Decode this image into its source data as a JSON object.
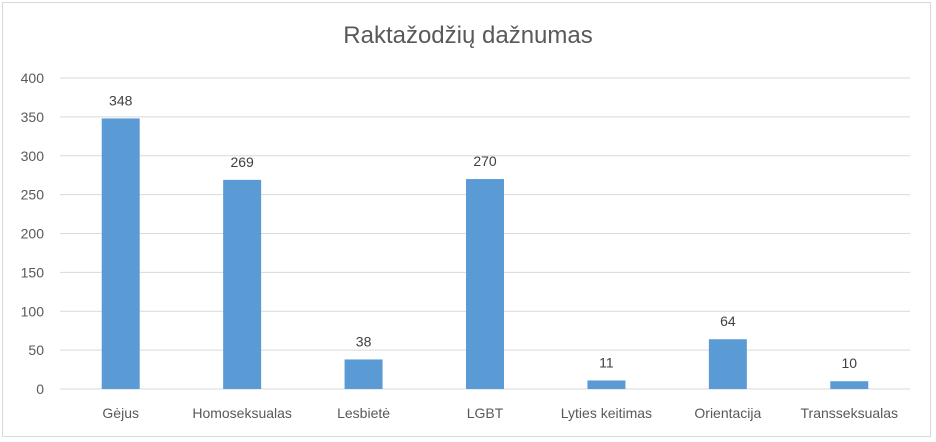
{
  "chart_data": {
    "type": "bar",
    "title": "Raktažodžių dažnumas",
    "categories": [
      "Gėjus",
      "Homoseksualas",
      "Lesbietė",
      "LGBT",
      "Lyties keitimas",
      "Orientacija",
      "Transseksualas"
    ],
    "values": [
      348,
      269,
      38,
      270,
      11,
      64,
      10
    ],
    "ylim": [
      0,
      400
    ],
    "yticks": [
      "0",
      "50",
      "100",
      "150",
      "200",
      "250",
      "300",
      "350",
      "400"
    ],
    "grid": true,
    "data_labels": true,
    "legend": "none",
    "colors": {
      "bar": "#5b9bd5",
      "grid": "#d9d9d9",
      "text": "#595959"
    }
  }
}
